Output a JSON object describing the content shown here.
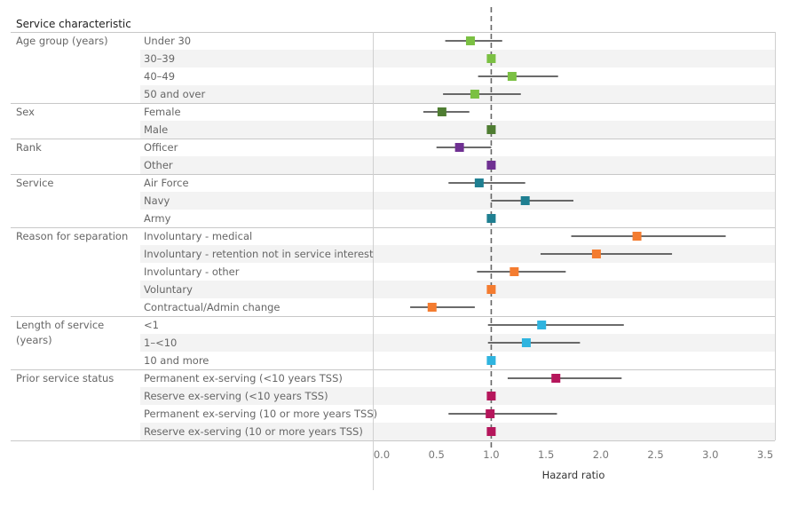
{
  "header": {
    "title": "Service characteristic"
  },
  "chart_data": {
    "type": "forest",
    "xlabel": "Hazard ratio",
    "xlim": [
      0.0,
      3.5
    ],
    "x_ticks": [
      "0.0",
      "0.5",
      "1.0",
      "1.5",
      "2.0",
      "2.5",
      "3.0",
      "3.5"
    ],
    "reference_line": 1.0,
    "groups": [
      {
        "name": "Age group (years)",
        "color": "#7bc043",
        "rows": [
          {
            "label": "Under 30",
            "hr": 0.81,
            "lo": 0.58,
            "hi": 1.1
          },
          {
            "label": "30–39",
            "hr": 1.0,
            "lo": 1.0,
            "hi": 1.0
          },
          {
            "label": "40–49",
            "hr": 1.19,
            "lo": 0.88,
            "hi": 1.61
          },
          {
            "label": "50 and over",
            "hr": 0.85,
            "lo": 0.56,
            "hi": 1.27
          }
        ]
      },
      {
        "name": "Sex",
        "color": "#4f7d32",
        "rows": [
          {
            "label": "Female",
            "hr": 0.55,
            "lo": 0.38,
            "hi": 0.8
          },
          {
            "label": "Male",
            "hr": 1.0,
            "lo": 1.0,
            "hi": 1.0
          }
        ]
      },
      {
        "name": "Rank",
        "color": "#6f3092",
        "rows": [
          {
            "label": "Officer",
            "hr": 0.71,
            "lo": 0.5,
            "hi": 1.0
          },
          {
            "label": "Other",
            "hr": 1.0,
            "lo": 1.0,
            "hi": 1.0
          }
        ]
      },
      {
        "name": "Service",
        "color": "#1f7f91",
        "rows": [
          {
            "label": "Air Force",
            "hr": 0.89,
            "lo": 0.61,
            "hi": 1.31
          },
          {
            "label": "Navy",
            "hr": 1.31,
            "lo": 1.0,
            "hi": 1.75
          },
          {
            "label": "Army",
            "hr": 1.0,
            "lo": 1.0,
            "hi": 1.0
          }
        ]
      },
      {
        "name": "Reason for separation",
        "color": "#f47c30",
        "rows": [
          {
            "label": "Involuntary - medical",
            "hr": 2.33,
            "lo": 1.73,
            "hi": 3.14
          },
          {
            "label": "Involuntary - retention not in service interest",
            "hr": 1.96,
            "lo": 1.45,
            "hi": 2.65
          },
          {
            "label": "Involuntary - other",
            "hr": 1.21,
            "lo": 0.87,
            "hi": 1.68
          },
          {
            "label": "Voluntary",
            "hr": 1.0,
            "lo": 1.0,
            "hi": 1.0
          },
          {
            "label": "Contractual/Admin change",
            "hr": 0.46,
            "lo": 0.26,
            "hi": 0.85
          }
        ]
      },
      {
        "name": "Length of service (years)",
        "name_lines": [
          "Length of service",
          "(years)"
        ],
        "color": "#2fb4df",
        "rows": [
          {
            "label": "<1",
            "hr": 1.46,
            "lo": 0.97,
            "hi": 2.21
          },
          {
            "label": "1–<10",
            "hr": 1.32,
            "lo": 0.97,
            "hi": 1.81
          },
          {
            "label": "10 and more",
            "hr": 1.0,
            "lo": 1.0,
            "hi": 1.0
          }
        ]
      },
      {
        "name": "Prior service status",
        "color": "#b5165b",
        "rows": [
          {
            "label": "Permanent ex-serving (<10 years TSS)",
            "hr": 1.59,
            "lo": 1.15,
            "hi": 2.19
          },
          {
            "label": "Reserve ex-serving (<10 years TSS)",
            "hr": 1.0,
            "lo": 1.0,
            "hi": 1.0
          },
          {
            "label": "Permanent ex-serving (10 or more years TSS)",
            "hr": 0.99,
            "lo": 0.61,
            "hi": 1.6
          },
          {
            "label": "Reserve ex-serving (10 or more years TSS)",
            "hr": 1.0,
            "lo": 1.0,
            "hi": 1.0
          }
        ]
      }
    ]
  }
}
